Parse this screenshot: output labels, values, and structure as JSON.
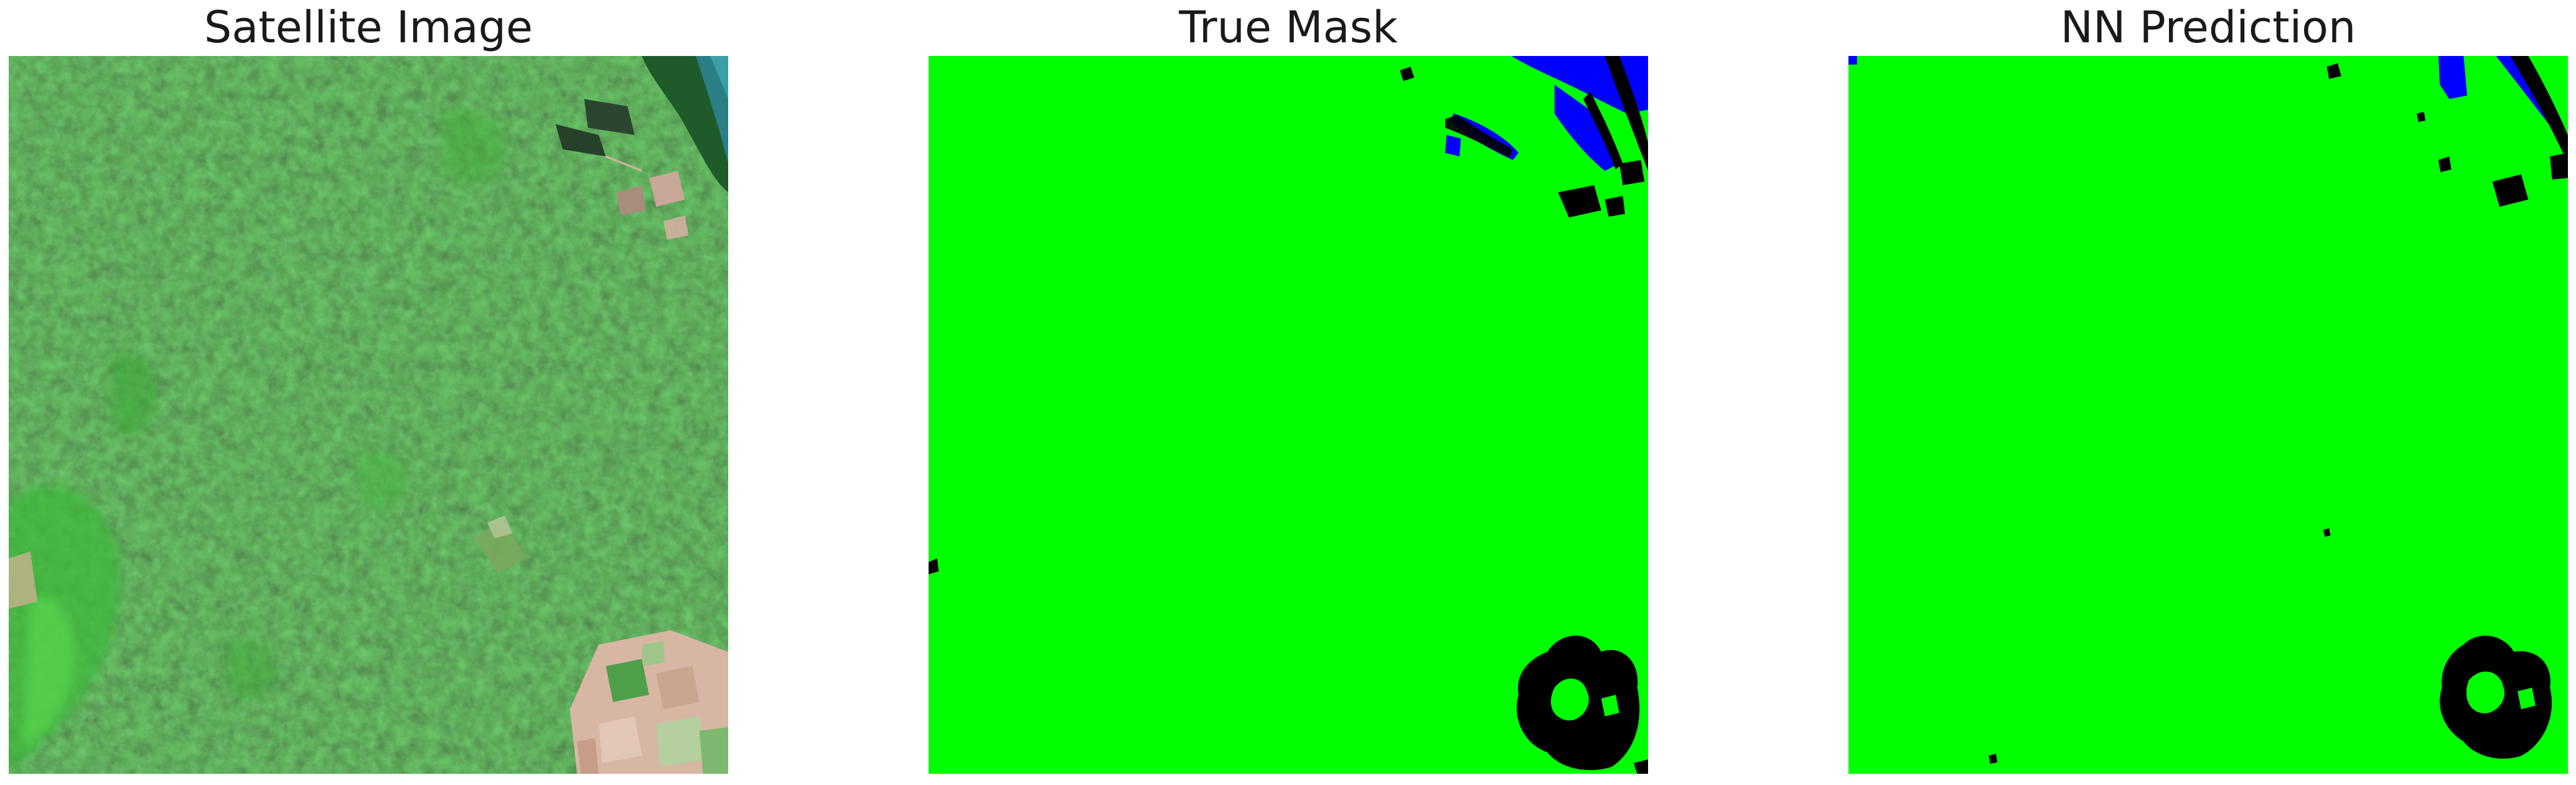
{
  "panels": [
    {
      "title": "Satellite Image"
    },
    {
      "title": "True Mask"
    },
    {
      "title": "NN Prediction"
    }
  ],
  "colors": {
    "forest_dark": "#1d4a1a",
    "forest_mid": "#2f6b28",
    "vegetation_bright": "#3fbf3a",
    "water": "#2a8a8a",
    "bare_soil": "#d9b8a8",
    "mask_land": "#00ff00",
    "mask_water": "#0000ff",
    "mask_other": "#000000"
  }
}
